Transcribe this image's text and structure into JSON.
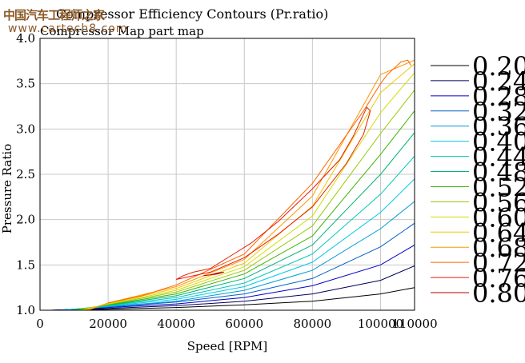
{
  "watermark": {
    "cn": "中国汽车工程师之家",
    "url": "www.cartech8.com"
  },
  "chart_data": {
    "type": "line",
    "title": "Compressor Efficiency Contours (Pr.ratio)",
    "subtitle": "Compressor Map part map",
    "xlabel": "Speed [RPM]",
    "ylabel": "Pressure Ratio",
    "xlim": [
      0,
      110000
    ],
    "ylim": [
      1.0,
      4.0
    ],
    "x_ticks": [
      0,
      20000,
      40000,
      60000,
      80000,
      100000,
      110000
    ],
    "x_tick_labels": [
      "0",
      "20000",
      "40000",
      "60000",
      "80000",
      "100000",
      "110000"
    ],
    "y_ticks": [
      1.0,
      1.5,
      2.0,
      2.5,
      3.0,
      3.5,
      4.0
    ],
    "y_tick_labels": [
      "1.0",
      "1.5",
      "2.0",
      "2.5",
      "3.0",
      "3.5",
      "4.0"
    ],
    "grid": true,
    "legend_position": "right",
    "series": [
      {
        "name": "0.20",
        "color": "#000000",
        "x": [
          3000,
          20000,
          40000,
          60000,
          80000,
          100000,
          110000
        ],
        "y": [
          1.0,
          1.01,
          1.03,
          1.06,
          1.1,
          1.18,
          1.25
        ]
      },
      {
        "name": "0.24",
        "color": "#00005a",
        "x": [
          3000,
          20000,
          40000,
          60000,
          80000,
          100000,
          110000
        ],
        "y": [
          1.0,
          1.02,
          1.05,
          1.1,
          1.18,
          1.33,
          1.49
        ]
      },
      {
        "name": "0.28",
        "color": "#0000c8",
        "x": [
          4000,
          20000,
          40000,
          60000,
          80000,
          100000,
          110000
        ],
        "y": [
          1.0,
          1.03,
          1.07,
          1.14,
          1.27,
          1.5,
          1.72
        ]
      },
      {
        "name": "0.32",
        "color": "#0060c8",
        "x": [
          5000,
          20000,
          40000,
          60000,
          80000,
          100000,
          110000
        ],
        "y": [
          1.0,
          1.035,
          1.09,
          1.18,
          1.35,
          1.7,
          1.96
        ]
      },
      {
        "name": "0.36",
        "color": "#009cd6",
        "x": [
          6000,
          20000,
          40000,
          60000,
          80000,
          100000,
          110000
        ],
        "y": [
          1.0,
          1.04,
          1.1,
          1.22,
          1.44,
          1.9,
          2.2
        ]
      },
      {
        "name": "0.40",
        "color": "#00c8e6",
        "x": [
          7000,
          20000,
          40000,
          60000,
          80000,
          100000,
          110000
        ],
        "y": [
          1.0,
          1.045,
          1.12,
          1.26,
          1.53,
          2.08,
          2.45
        ]
      },
      {
        "name": "0.44",
        "color": "#00c8b4",
        "x": [
          8000,
          20000,
          40000,
          60000,
          80000,
          100000,
          110000
        ],
        "y": [
          1.0,
          1.05,
          1.14,
          1.3,
          1.62,
          2.28,
          2.7
        ]
      },
      {
        "name": "0.48",
        "color": "#00b478",
        "x": [
          9000,
          20000,
          40000,
          60000,
          80000,
          100000,
          110000
        ],
        "y": [
          1.0,
          1.055,
          1.16,
          1.35,
          1.72,
          2.5,
          2.96
        ]
      },
      {
        "name": "0.52",
        "color": "#3cb400",
        "x": [
          10000,
          20000,
          40000,
          60000,
          80000,
          100000,
          110000
        ],
        "y": [
          1.0,
          1.06,
          1.18,
          1.4,
          1.82,
          2.72,
          3.2
        ]
      },
      {
        "name": "0.56",
        "color": "#96c800",
        "x": [
          11000,
          20000,
          40000,
          60000,
          80000,
          100000,
          110000
        ],
        "y": [
          1.0,
          1.065,
          1.2,
          1.44,
          1.93,
          2.95,
          3.43
        ]
      },
      {
        "name": "0.60",
        "color": "#d2dc00",
        "x": [
          12000,
          20000,
          40000,
          60000,
          80000,
          100000,
          110000
        ],
        "y": [
          1.0,
          1.07,
          1.22,
          1.48,
          2.04,
          3.18,
          3.62
        ]
      },
      {
        "name": "0.64",
        "color": "#f0c800",
        "x": [
          13000,
          20000,
          40000,
          60000,
          80000,
          100000,
          110000
        ],
        "y": [
          1.0,
          1.075,
          1.24,
          1.52,
          2.15,
          3.4,
          3.72
        ]
      },
      {
        "name": "0.68",
        "color": "#ff9600",
        "x": [
          14000,
          20000,
          40000,
          60000,
          80000,
          100000,
          110000
        ],
        "y": [
          1.0,
          1.08,
          1.26,
          1.56,
          2.26,
          3.6,
          3.76
        ]
      },
      {
        "name": "0.72",
        "color": "#ff6400",
        "x": [
          20000,
          30000,
          40000,
          60000,
          80000,
          95000,
          100000,
          102000,
          106000,
          108000,
          109000
        ],
        "y": [
          1.08,
          1.16,
          1.28,
          1.62,
          2.4,
          3.2,
          3.5,
          3.6,
          3.74,
          3.76,
          3.7
        ]
      },
      {
        "name": "0.76",
        "color": "#e61e00",
        "x": [
          40000,
          50000,
          60000,
          70000,
          80000,
          90000,
          95000,
          97000,
          96000,
          92000,
          88000,
          80000,
          70000,
          62000,
          56000,
          50000,
          45000,
          42000,
          40000
        ],
        "y": [
          1.34,
          1.42,
          1.58,
          1.84,
          2.14,
          2.62,
          2.94,
          3.2,
          3.24,
          2.92,
          2.66,
          2.34,
          1.98,
          1.74,
          1.6,
          1.46,
          1.42,
          1.38,
          1.34
        ]
      },
      {
        "name": "0.80",
        "color": "#b40000",
        "x": [
          48000,
          50000,
          52000,
          54000,
          52000,
          50000,
          48000
        ],
        "y": [
          1.38,
          1.39,
          1.41,
          1.42,
          1.4,
          1.39,
          1.38
        ]
      }
    ]
  }
}
